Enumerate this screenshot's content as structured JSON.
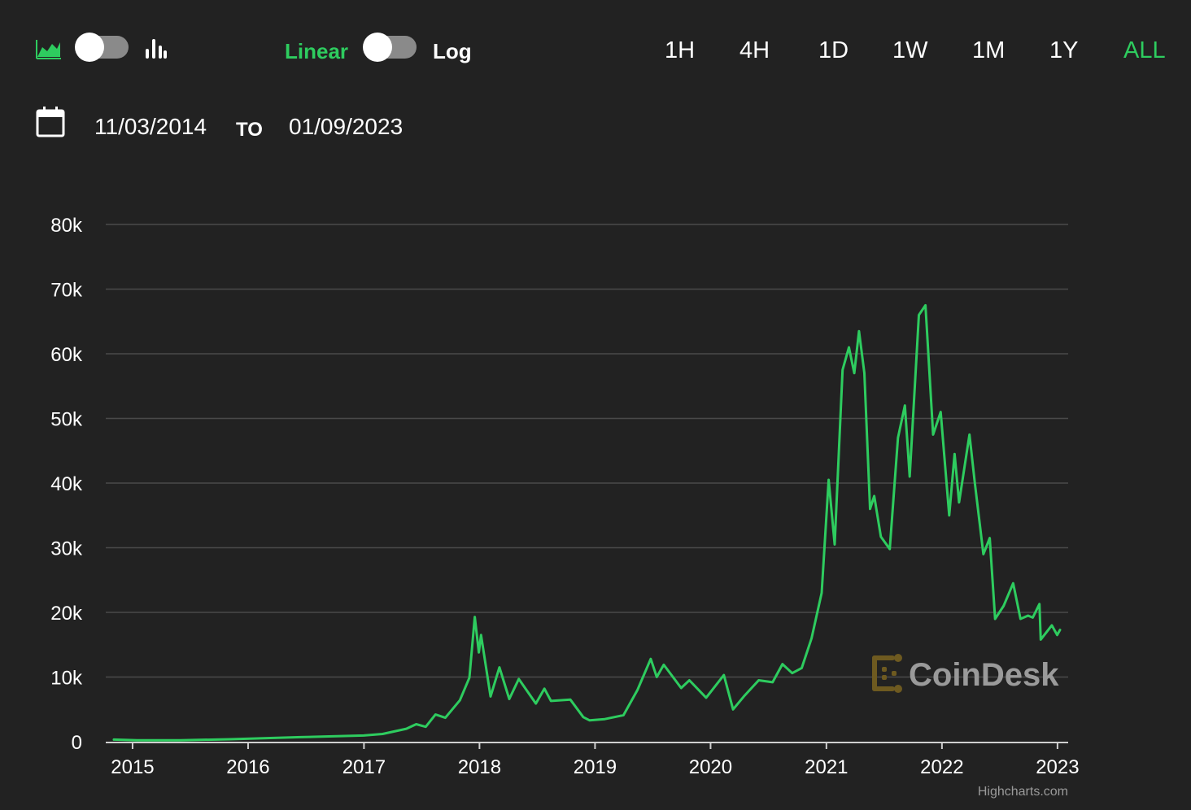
{
  "toolbar": {
    "scale_linear_label": "Linear",
    "scale_log_label": "Log",
    "ranges": [
      "1H",
      "4H",
      "1D",
      "1W",
      "1M",
      "1Y",
      "ALL"
    ],
    "active_range": "ALL",
    "scale_mode": "linear",
    "icons": [
      "area-chart-icon",
      "bar-chart-icon",
      "calendar-icon"
    ]
  },
  "date_range": {
    "from": "11/03/2014",
    "to_label": "TO",
    "to": "01/09/2023"
  },
  "watermark": {
    "text": "CoinDesk"
  },
  "credits": "Highcharts.com",
  "colors": {
    "accent": "#2ecc5f",
    "background": "#222222",
    "line": "#2ecc5f"
  },
  "chart_data": {
    "type": "line",
    "title": "",
    "xlabel": "",
    "ylabel": "",
    "x_ticks": [
      "2015",
      "2016",
      "2017",
      "2018",
      "2019",
      "2020",
      "2021",
      "2022",
      "2023"
    ],
    "y_ticks": [
      "0",
      "10k",
      "20k",
      "30k",
      "40k",
      "50k",
      "60k",
      "70k",
      "80k"
    ],
    "ylim": [
      0,
      80000
    ],
    "xlim": [
      "2014-11-03",
      "2023-01-09"
    ],
    "grid": true,
    "legend": "none",
    "series": [
      {
        "values": [
          [
            "2014-11-03",
            330
          ],
          [
            "2015-01-15",
            210
          ],
          [
            "2015-06-01",
            230
          ],
          [
            "2015-11-05",
            380
          ],
          [
            "2016-06-15",
            700
          ],
          [
            "2016-12-31",
            960
          ],
          [
            "2017-03-01",
            1200
          ],
          [
            "2017-05-15",
            2000
          ],
          [
            "2017-06-15",
            2700
          ],
          [
            "2017-07-15",
            2300
          ],
          [
            "2017-08-15",
            4200
          ],
          [
            "2017-09-15",
            3700
          ],
          [
            "2017-10-31",
            6400
          ],
          [
            "2017-11-30",
            9900
          ],
          [
            "2017-12-17",
            19300
          ],
          [
            "2017-12-30",
            13800
          ],
          [
            "2018-01-06",
            16500
          ],
          [
            "2018-02-05",
            7000
          ],
          [
            "2018-03-05",
            11500
          ],
          [
            "2018-04-05",
            6600
          ],
          [
            "2018-05-05",
            9700
          ],
          [
            "2018-06-28",
            5900
          ],
          [
            "2018-07-25",
            8200
          ],
          [
            "2018-08-15",
            6300
          ],
          [
            "2018-10-15",
            6500
          ],
          [
            "2018-11-25",
            3800
          ],
          [
            "2018-12-15",
            3300
          ],
          [
            "2019-02-01",
            3500
          ],
          [
            "2019-04-01",
            4100
          ],
          [
            "2019-05-15",
            8000
          ],
          [
            "2019-06-26",
            12800
          ],
          [
            "2019-07-15",
            10000
          ],
          [
            "2019-08-06",
            11900
          ],
          [
            "2019-09-30",
            8300
          ],
          [
            "2019-10-26",
            9500
          ],
          [
            "2019-12-18",
            6800
          ],
          [
            "2020-02-12",
            10300
          ],
          [
            "2020-03-12",
            5000
          ],
          [
            "2020-04-15",
            7000
          ],
          [
            "2020-06-01",
            9500
          ],
          [
            "2020-07-15",
            9200
          ],
          [
            "2020-08-15",
            12000
          ],
          [
            "2020-09-15",
            10600
          ],
          [
            "2020-10-15",
            11400
          ],
          [
            "2020-11-15",
            16000
          ],
          [
            "2020-12-17",
            23000
          ],
          [
            "2021-01-08",
            40500
          ],
          [
            "2021-01-27",
            30500
          ],
          [
            "2021-02-21",
            57500
          ],
          [
            "2021-03-13",
            61000
          ],
          [
            "2021-03-30",
            57000
          ],
          [
            "2021-04-14",
            63500
          ],
          [
            "2021-05-01",
            57000
          ],
          [
            "2021-05-19",
            36000
          ],
          [
            "2021-06-01",
            38000
          ],
          [
            "2021-06-22",
            31700
          ],
          [
            "2021-07-20",
            29800
          ],
          [
            "2021-08-15",
            47000
          ],
          [
            "2021-09-06",
            52000
          ],
          [
            "2021-09-21",
            41000
          ],
          [
            "2021-10-20",
            66000
          ],
          [
            "2021-11-10",
            67500
          ],
          [
            "2021-12-04",
            47500
          ],
          [
            "2021-12-28",
            51000
          ],
          [
            "2022-01-24",
            35000
          ],
          [
            "2022-02-10",
            44500
          ],
          [
            "2022-02-24",
            37000
          ],
          [
            "2022-03-29",
            47500
          ],
          [
            "2022-04-15",
            40000
          ],
          [
            "2022-05-12",
            29000
          ],
          [
            "2022-06-01",
            31500
          ],
          [
            "2022-06-18",
            19000
          ],
          [
            "2022-07-15",
            21000
          ],
          [
            "2022-08-14",
            24500
          ],
          [
            "2022-09-06",
            19000
          ],
          [
            "2022-09-30",
            19500
          ],
          [
            "2022-10-15",
            19200
          ],
          [
            "2022-11-05",
            21300
          ],
          [
            "2022-11-09",
            15800
          ],
          [
            "2022-12-14",
            18000
          ],
          [
            "2022-12-31",
            16500
          ],
          [
            "2023-01-09",
            17300
          ]
        ]
      }
    ]
  }
}
